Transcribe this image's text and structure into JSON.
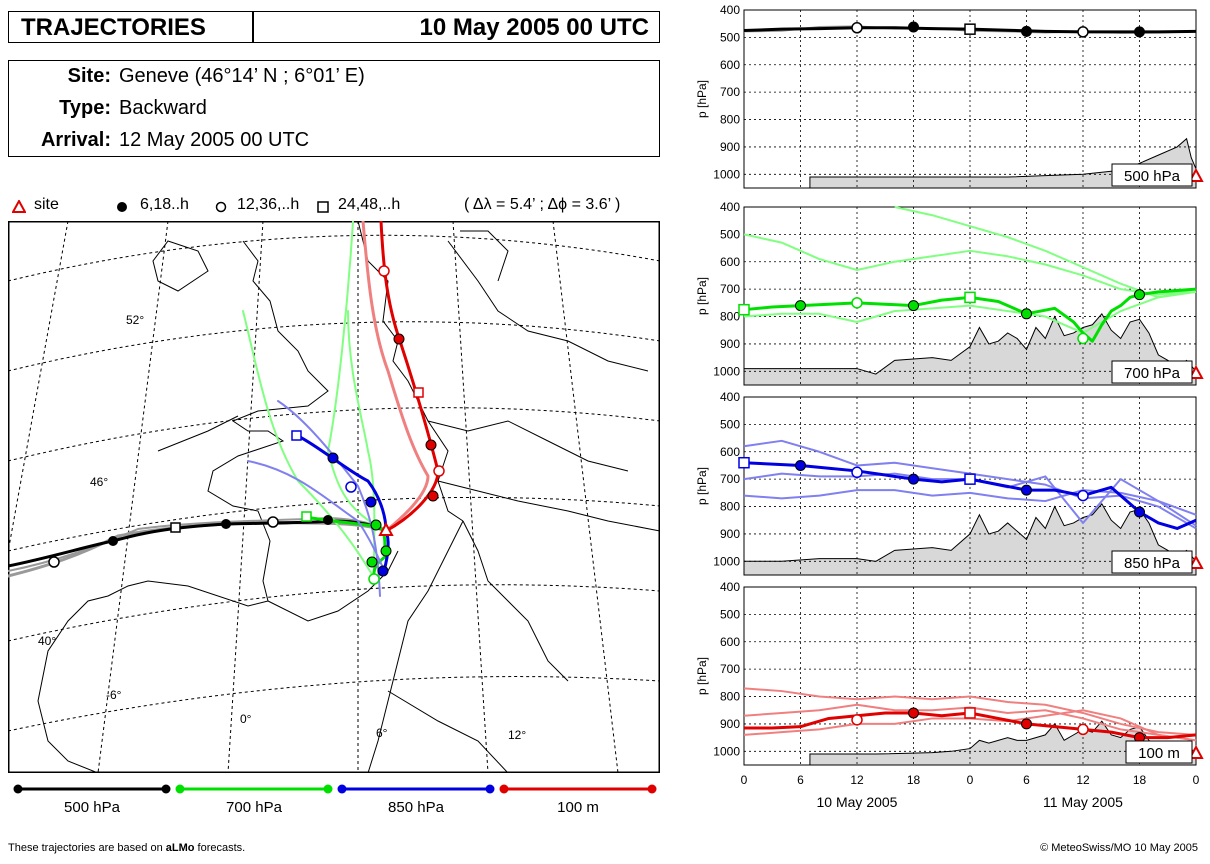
{
  "header": {
    "title": "TRAJECTORIES",
    "datetime": "10 May 2005 00 UTC"
  },
  "info": {
    "site_label": "Site:",
    "site_value": "Geneve   (46°14’ N ;  6°01’ E)",
    "type_label": "Type:",
    "type_value": "Backward",
    "arrival_label": "Arrival:",
    "arrival_value": "12 May 2005 00 UTC"
  },
  "legend": {
    "site": "site",
    "six": "6,18..h",
    "twelve": "12,36,..h",
    "twentyfour": "24,48,..h",
    "resolution": "( Δλ = 5.4’ ; Δϕ = 3.6’ )"
  },
  "map": {
    "lat_labels": [
      "52°",
      "46°",
      "40°"
    ],
    "lon_labels": [
      "-6°",
      "0°",
      "6°",
      "12°"
    ]
  },
  "series_legend": [
    {
      "name": "500 hPa",
      "color": "#000000"
    },
    {
      "name": "700 hPa",
      "color": "#00e000"
    },
    {
      "name": "850 hPa",
      "color": "#0000e0"
    },
    {
      "name": "100 m",
      "color": "#e00000"
    }
  ],
  "footer": {
    "left_prefix": "These trajectories are based on ",
    "left_bold": "aLMo",
    "left_suffix": " forecasts.",
    "right": "© MeteoSwiss/MO 10 May 2005"
  },
  "chart_data": [
    {
      "type": "line",
      "label": "500 hPa",
      "ylabel": "p [hPa]",
      "ylim": [
        1050,
        400
      ],
      "yticks": [
        400,
        500,
        600,
        700,
        800,
        900,
        1000
      ],
      "xlim": [
        0,
        48
      ],
      "xtick_labels": [
        "0",
        "6",
        "12",
        "18",
        "0",
        "6",
        "12",
        "18",
        "0"
      ],
      "date_labels": [
        "10 May 2005",
        "11 May 2005"
      ],
      "main": {
        "color": "#000000",
        "x": [
          0,
          4,
          8,
          12,
          16,
          20,
          24,
          28,
          32,
          36,
          40,
          44,
          48
        ],
        "y": [
          475,
          470,
          468,
          465,
          465,
          468,
          470,
          474,
          478,
          480,
          480,
          480,
          478
        ]
      },
      "members": [
        {
          "color": "#999999",
          "x": [
            0,
            4,
            8,
            12,
            16,
            20,
            24,
            28,
            32,
            36,
            40,
            44,
            48
          ],
          "y": [
            478,
            476,
            462,
            460,
            468,
            466,
            476,
            478,
            482,
            478,
            483,
            482,
            478
          ]
        }
      ],
      "markers": [
        {
          "x": 12,
          "y": 465,
          "m": "open"
        },
        {
          "x": 18,
          "y": 462,
          "m": "filled"
        },
        {
          "x": 24,
          "y": 470,
          "m": "square"
        },
        {
          "x": 30,
          "y": 478,
          "m": "filled"
        },
        {
          "x": 36,
          "y": 480,
          "m": "open"
        },
        {
          "x": 42,
          "y": 480,
          "m": "filled"
        }
      ],
      "terrain": {
        "x": [
          7,
          14,
          22,
          28,
          32,
          36,
          40,
          42,
          44,
          46,
          47,
          47.5,
          48
        ],
        "y": [
          1010,
          1010,
          1010,
          1010,
          1005,
          1000,
          985,
          960,
          930,
          900,
          870,
          940,
          980
        ]
      }
    },
    {
      "type": "line",
      "label": "700 hPa",
      "ylabel": "p [hPa]",
      "ylim": [
        1050,
        400
      ],
      "yticks": [
        400,
        500,
        600,
        700,
        800,
        900,
        1000
      ],
      "xlim": [
        0,
        48
      ],
      "main": {
        "color": "#00e000",
        "x": [
          0,
          3,
          6,
          9,
          12,
          15,
          18,
          21,
          24,
          27,
          30,
          33,
          35,
          36,
          37,
          38,
          39,
          40,
          41,
          42,
          44,
          46,
          48
        ],
        "y": [
          775,
          765,
          760,
          755,
          750,
          755,
          760,
          740,
          730,
          745,
          790,
          770,
          820,
          860,
          890,
          830,
          780,
          760,
          730,
          720,
          710,
          705,
          700
        ]
      },
      "members": [
        {
          "color": "#80ff80",
          "x": [
            0,
            4,
            8,
            12,
            16,
            20,
            24,
            28,
            32,
            36,
            40,
            44,
            48
          ],
          "y": [
            500,
            530,
            590,
            630,
            600,
            580,
            560,
            580,
            610,
            650,
            700,
            720,
            700
          ]
        },
        {
          "color": "#80ff80",
          "x": [
            16,
            20,
            24,
            28,
            32,
            36,
            40,
            44,
            48
          ],
          "y": [
            400,
            430,
            470,
            510,
            560,
            620,
            680,
            730,
            710
          ]
        },
        {
          "color": "#80ff80",
          "x": [
            0,
            4,
            8,
            12,
            16,
            20,
            24,
            28,
            32,
            36,
            40,
            44,
            48
          ],
          "y": [
            800,
            790,
            790,
            820,
            780,
            770,
            760,
            780,
            800,
            860,
            780,
            730,
            700
          ]
        }
      ],
      "markers": [
        {
          "x": 0,
          "y": 775,
          "m": "square"
        },
        {
          "x": 6,
          "y": 760,
          "m": "filled"
        },
        {
          "x": 12,
          "y": 750,
          "m": "open"
        },
        {
          "x": 18,
          "y": 760,
          "m": "filled"
        },
        {
          "x": 24,
          "y": 730,
          "m": "square"
        },
        {
          "x": 30,
          "y": 790,
          "m": "filled"
        },
        {
          "x": 36,
          "y": 880,
          "m": "open"
        },
        {
          "x": 42,
          "y": 720,
          "m": "filled"
        }
      ],
      "terrain": {
        "x": [
          0,
          4,
          8,
          12,
          14,
          16,
          20,
          22,
          24,
          25,
          26,
          27,
          28,
          29,
          30,
          31,
          32,
          33,
          34,
          35,
          36,
          37,
          38,
          39,
          40,
          41,
          42,
          43,
          44,
          45,
          46,
          47,
          48
        ],
        "y": [
          990,
          990,
          990,
          990,
          1010,
          960,
          950,
          960,
          910,
          840,
          900,
          890,
          860,
          880,
          920,
          840,
          880,
          800,
          870,
          860,
          840,
          830,
          790,
          850,
          880,
          820,
          810,
          860,
          940,
          960,
          980,
          960,
          1000
        ]
      }
    },
    {
      "type": "line",
      "label": "850 hPa",
      "ylabel": "p [hPa]",
      "ylim": [
        1050,
        400
      ],
      "yticks": [
        400,
        500,
        600,
        700,
        800,
        900,
        1000
      ],
      "xlim": [
        0,
        48
      ],
      "main": {
        "color": "#0000e0",
        "x": [
          0,
          3,
          6,
          9,
          12,
          15,
          18,
          21,
          24,
          27,
          30,
          33,
          36,
          39,
          42,
          44,
          46,
          48
        ],
        "y": [
          640,
          645,
          650,
          660,
          670,
          685,
          700,
          710,
          700,
          720,
          740,
          740,
          760,
          730,
          820,
          860,
          880,
          850
        ]
      },
      "members": [
        {
          "color": "#8080f0",
          "x": [
            0,
            4,
            8,
            12,
            16,
            20,
            24,
            28,
            32,
            36,
            40,
            44,
            48
          ],
          "y": [
            580,
            560,
            600,
            650,
            640,
            660,
            680,
            700,
            720,
            770,
            760,
            800,
            880
          ]
        },
        {
          "color": "#8080f0",
          "x": [
            0,
            4,
            8,
            12,
            16,
            20,
            24,
            28,
            32,
            36,
            40,
            44,
            48
          ],
          "y": [
            700,
            680,
            690,
            690,
            680,
            700,
            700,
            730,
            690,
            860,
            700,
            780,
            870
          ]
        },
        {
          "color": "#8080f0",
          "x": [
            0,
            4,
            8,
            12,
            16,
            20,
            24,
            28,
            32,
            36,
            40,
            44,
            48
          ],
          "y": [
            760,
            770,
            760,
            740,
            740,
            760,
            750,
            770,
            780,
            740,
            750,
            780,
            830
          ]
        }
      ],
      "markers": [
        {
          "x": 0,
          "y": 640,
          "m": "square"
        },
        {
          "x": 6,
          "y": 650,
          "m": "filled"
        },
        {
          "x": 12,
          "y": 675,
          "m": "open"
        },
        {
          "x": 18,
          "y": 700,
          "m": "filled"
        },
        {
          "x": 24,
          "y": 700,
          "m": "square"
        },
        {
          "x": 30,
          "y": 740,
          "m": "filled"
        },
        {
          "x": 36,
          "y": 760,
          "m": "open"
        },
        {
          "x": 42,
          "y": 820,
          "m": "filled"
        }
      ],
      "terrain": {
        "x": [
          0,
          4,
          8,
          12,
          14,
          16,
          20,
          22,
          24,
          25,
          26,
          27,
          28,
          29,
          30,
          31,
          32,
          33,
          34,
          35,
          36,
          37,
          38,
          39,
          40,
          41,
          42,
          43,
          44,
          45,
          46,
          47,
          48
        ],
        "y": [
          1000,
          1000,
          990,
          990,
          1000,
          960,
          950,
          960,
          900,
          830,
          900,
          890,
          860,
          890,
          920,
          840,
          880,
          800,
          870,
          860,
          840,
          830,
          790,
          850,
          880,
          820,
          810,
          860,
          940,
          960,
          980,
          960,
          1000
        ]
      }
    },
    {
      "type": "line",
      "label": "100 m",
      "ylabel": "p [hPa]",
      "ylim": [
        1050,
        400
      ],
      "yticks": [
        400,
        500,
        600,
        700,
        800,
        900,
        1000
      ],
      "xlim": [
        0,
        48
      ],
      "main": {
        "color": "#e00000",
        "x": [
          0,
          3,
          6,
          9,
          12,
          15,
          18,
          21,
          24,
          27,
          30,
          33,
          36,
          39,
          42,
          45,
          48
        ],
        "y": [
          915,
          915,
          910,
          880,
          870,
          860,
          860,
          870,
          860,
          880,
          900,
          910,
          920,
          930,
          950,
          950,
          940
        ]
      },
      "members": [
        {
          "color": "#f08080",
          "x": [
            0,
            4,
            8,
            12,
            16,
            20,
            24,
            28,
            32,
            36,
            40,
            44,
            48
          ],
          "y": [
            770,
            780,
            800,
            810,
            800,
            810,
            800,
            820,
            830,
            860,
            900,
            930,
            940
          ]
        },
        {
          "color": "#f08080",
          "x": [
            0,
            4,
            8,
            12,
            16,
            20,
            24,
            28,
            32,
            36,
            40,
            44,
            48
          ],
          "y": [
            870,
            860,
            850,
            830,
            850,
            850,
            840,
            860,
            850,
            880,
            920,
            940,
            960
          ]
        },
        {
          "color": "#f08080",
          "x": [
            0,
            4,
            8,
            12,
            16,
            20,
            24,
            28,
            32,
            36,
            40,
            44,
            48
          ],
          "y": [
            940,
            930,
            920,
            900,
            900,
            880,
            880,
            890,
            870,
            850,
            880,
            940,
            960
          ]
        }
      ],
      "markers": [
        {
          "x": 12,
          "y": 885,
          "m": "open"
        },
        {
          "x": 18,
          "y": 860,
          "m": "filled"
        },
        {
          "x": 24,
          "y": 860,
          "m": "square"
        },
        {
          "x": 30,
          "y": 900,
          "m": "filled"
        },
        {
          "x": 36,
          "y": 920,
          "m": "open"
        },
        {
          "x": 42,
          "y": 950,
          "m": "filled"
        }
      ],
      "terrain": {
        "x": [
          7,
          14,
          20,
          22,
          24,
          25,
          26,
          27,
          28,
          29,
          30,
          31,
          32,
          33,
          34,
          35,
          36,
          37,
          38,
          39,
          40,
          41,
          42,
          43,
          44,
          45,
          46,
          47,
          48
        ],
        "y": [
          1010,
          1010,
          1005,
          1000,
          990,
          960,
          970,
          960,
          950,
          960,
          960,
          950,
          940,
          900,
          960,
          940,
          920,
          930,
          890,
          940,
          950,
          920,
          910,
          960,
          1000,
          1000,
          1000,
          990,
          1000
        ]
      }
    }
  ]
}
